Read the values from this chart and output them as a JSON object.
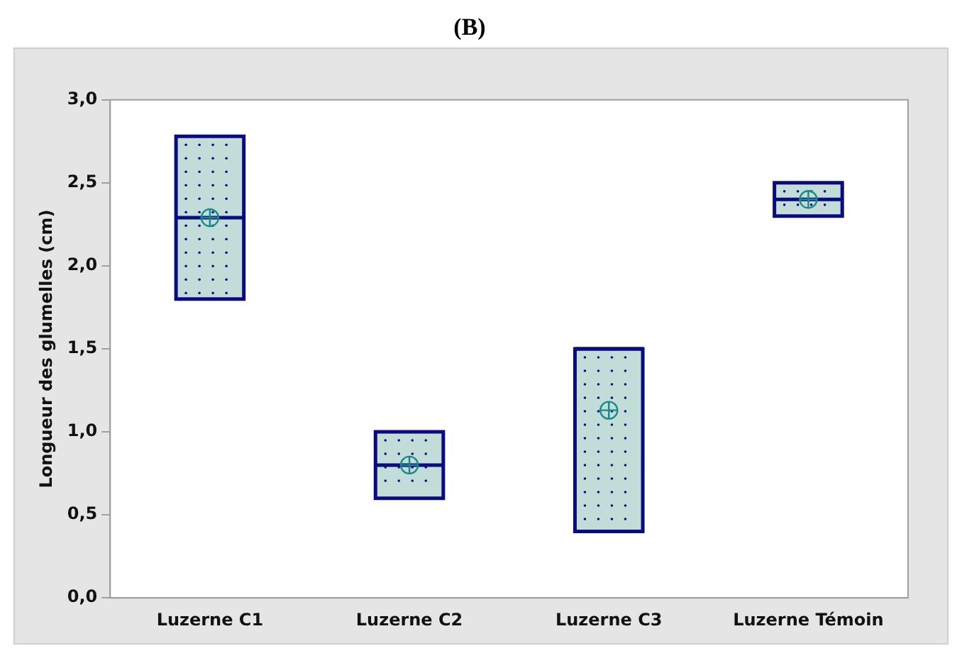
{
  "chart_data": {
    "type": "box",
    "title": "(B)",
    "ylabel": "Longueur des glumelles (cm)",
    "categories": [
      "Luzerne C1",
      "Luzerne C2",
      "Luzerne C3",
      "Luzerne Témoin"
    ],
    "color": "#c2dcd8",
    "boxes": [
      {
        "low": 1.8,
        "q1": 1.8,
        "median": 2.29,
        "q3": 2.78,
        "high": 2.78,
        "mean": 2.29
      },
      {
        "low": 0.6,
        "q1": 0.6,
        "median": 0.8,
        "q3": 1.0,
        "high": 1.0,
        "mean": 0.8
      },
      {
        "low": 0.4,
        "q1": 0.4,
        "median": 1.5,
        "q3": 1.5,
        "high": 1.5,
        "mean": 1.13
      },
      {
        "low": 2.3,
        "q1": 2.3,
        "median": 2.4,
        "q3": 2.5,
        "high": 2.5,
        "mean": 2.4
      }
    ],
    "ylim": [
      0,
      3
    ],
    "yticks": [
      {
        "value": 0,
        "label": "0,0"
      },
      {
        "value": 0.5,
        "label": "0,5"
      },
      {
        "value": 1,
        "label": "1,0"
      },
      {
        "value": 1.5,
        "label": "1,5"
      },
      {
        "value": 2,
        "label": "2,0"
      },
      {
        "value": 2.5,
        "label": "2,5"
      },
      {
        "value": 3,
        "label": "3,0"
      }
    ],
    "grid": false
  }
}
